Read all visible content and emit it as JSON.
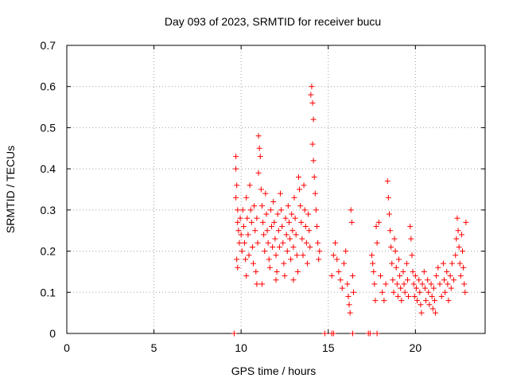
{
  "chart_data": {
    "type": "scatter",
    "title": "Day 093 of 2023, SRMTID for receiver bucu",
    "xlabel": "GPS time / hours",
    "ylabel": "SRMTID / TECUs",
    "xlim": [
      0,
      24
    ],
    "ylim": [
      0,
      0.7
    ],
    "xticks": [
      0,
      5,
      10,
      15,
      20
    ],
    "yticks": [
      0,
      0.1,
      0.2,
      0.3,
      0.4,
      0.5,
      0.6,
      0.7
    ],
    "xtick_labels": [
      "0",
      "5",
      "10",
      "15",
      "20"
    ],
    "ytick_labels": [
      "0",
      "0.1",
      "0.2",
      "0.3",
      "0.4",
      "0.5",
      "0.6",
      "0.7"
    ],
    "grid": true,
    "marker": "+",
    "color": "#ff0000",
    "series": [
      {
        "name": "SRMTID",
        "points": [
          [
            9.7,
            0.43
          ],
          [
            9.7,
            0.4
          ],
          [
            9.75,
            0.36
          ],
          [
            9.7,
            0.33
          ],
          [
            9.8,
            0.3
          ],
          [
            9.8,
            0.27
          ],
          [
            9.85,
            0.25
          ],
          [
            9.9,
            0.22
          ],
          [
            9.75,
            0.18
          ],
          [
            9.8,
            0.16
          ],
          [
            9.95,
            0.28
          ],
          [
            10.0,
            0.24
          ],
          [
            10.05,
            0.2
          ],
          [
            10.1,
            0.3
          ],
          [
            10.15,
            0.26
          ],
          [
            10.2,
            0.22
          ],
          [
            10.25,
            0.18
          ],
          [
            10.3,
            0.33
          ],
          [
            10.35,
            0.28
          ],
          [
            10.4,
            0.24
          ],
          [
            10.45,
            0.19
          ],
          [
            10.5,
            0.36
          ],
          [
            10.55,
            0.3
          ],
          [
            10.6,
            0.27
          ],
          [
            10.65,
            0.21
          ],
          [
            10.7,
            0.17
          ],
          [
            10.75,
            0.31
          ],
          [
            10.8,
            0.25
          ],
          [
            10.85,
            0.15
          ],
          [
            10.9,
            0.28
          ],
          [
            10.9,
            0.12
          ],
          [
            10.95,
            0.22
          ],
          [
            11.0,
            0.48
          ],
          [
            11.05,
            0.45
          ],
          [
            11.1,
            0.43
          ],
          [
            11.0,
            0.39
          ],
          [
            11.15,
            0.35
          ],
          [
            11.2,
            0.31
          ],
          [
            11.25,
            0.27
          ],
          [
            11.3,
            0.24
          ],
          [
            11.35,
            0.2
          ],
          [
            11.4,
            0.34
          ],
          [
            11.45,
            0.29
          ],
          [
            11.5,
            0.25
          ],
          [
            11.55,
            0.22
          ],
          [
            11.6,
            0.18
          ],
          [
            11.65,
            0.16
          ],
          [
            11.7,
            0.3
          ],
          [
            11.75,
            0.26
          ],
          [
            11.8,
            0.21
          ],
          [
            11.85,
            0.32
          ],
          [
            11.9,
            0.27
          ],
          [
            11.95,
            0.23
          ],
          [
            12.0,
            0.19
          ],
          [
            12.05,
            0.15
          ],
          [
            12.1,
            0.29
          ],
          [
            12.15,
            0.25
          ],
          [
            12.2,
            0.21
          ],
          [
            12.25,
            0.34
          ],
          [
            12.3,
            0.3
          ],
          [
            12.35,
            0.26
          ],
          [
            12.4,
            0.22
          ],
          [
            12.45,
            0.17
          ],
          [
            12.5,
            0.14
          ],
          [
            12.55,
            0.28
          ],
          [
            12.6,
            0.24
          ],
          [
            12.65,
            0.2
          ],
          [
            12.7,
            0.31
          ],
          [
            12.75,
            0.27
          ],
          [
            12.8,
            0.23
          ],
          [
            12.85,
            0.18
          ],
          [
            12.9,
            0.29
          ],
          [
            12.95,
            0.25
          ],
          [
            13.0,
            0.21
          ],
          [
            13.05,
            0.33
          ],
          [
            13.1,
            0.28
          ],
          [
            13.15,
            0.24
          ],
          [
            13.2,
            0.19
          ],
          [
            13.25,
            0.15
          ],
          [
            13.3,
            0.38
          ],
          [
            13.35,
            0.35
          ],
          [
            13.4,
            0.31
          ],
          [
            13.45,
            0.27
          ],
          [
            13.5,
            0.23
          ],
          [
            13.55,
            0.19
          ],
          [
            13.6,
            0.36
          ],
          [
            13.65,
            0.3
          ],
          [
            13.7,
            0.26
          ],
          [
            13.75,
            0.22
          ],
          [
            13.8,
            0.17
          ],
          [
            13.85,
            0.29
          ],
          [
            13.9,
            0.25
          ],
          [
            13.95,
            0.21
          ],
          [
            14.0,
            0.58
          ],
          [
            14.05,
            0.6
          ],
          [
            14.1,
            0.56
          ],
          [
            14.15,
            0.52
          ],
          [
            14.1,
            0.46
          ],
          [
            14.15,
            0.42
          ],
          [
            14.2,
            0.38
          ],
          [
            14.25,
            0.34
          ],
          [
            14.3,
            0.3
          ],
          [
            14.35,
            0.26
          ],
          [
            14.4,
            0.22
          ],
          [
            14.45,
            0.18
          ],
          [
            14.5,
            0.2
          ],
          [
            10.3,
            0.14
          ],
          [
            11.2,
            0.12
          ],
          [
            12.0,
            0.13
          ],
          [
            13.0,
            0.13
          ],
          [
            15.2,
            0.14
          ],
          [
            15.3,
            0.19
          ],
          [
            15.4,
            0.22
          ],
          [
            15.5,
            0.18
          ],
          [
            15.6,
            0.15
          ],
          [
            15.7,
            0.13
          ],
          [
            15.8,
            0.11
          ],
          [
            15.9,
            0.17
          ],
          [
            16.0,
            0.2
          ],
          [
            16.1,
            0.12
          ],
          [
            16.15,
            0.09
          ],
          [
            16.2,
            0.07
          ],
          [
            16.25,
            0.05
          ],
          [
            16.3,
            0.3
          ],
          [
            16.35,
            0.27
          ],
          [
            16.4,
            0.14
          ],
          [
            16.45,
            0.1
          ],
          [
            17.5,
            0.19
          ],
          [
            17.55,
            0.17
          ],
          [
            17.6,
            0.15
          ],
          [
            17.65,
            0.12
          ],
          [
            17.7,
            0.08
          ],
          [
            17.75,
            0.26
          ],
          [
            17.8,
            0.22
          ],
          [
            17.9,
            0.27
          ],
          [
            18.0,
            0.14
          ],
          [
            18.1,
            0.1
          ],
          [
            18.2,
            0.08
          ],
          [
            18.3,
            0.12
          ],
          [
            18.4,
            0.37
          ],
          [
            18.45,
            0.33
          ],
          [
            18.5,
            0.29
          ],
          [
            18.55,
            0.25
          ],
          [
            18.6,
            0.21
          ],
          [
            18.65,
            0.17
          ],
          [
            18.7,
            0.13
          ],
          [
            18.75,
            0.1
          ],
          [
            18.8,
            0.23
          ],
          [
            18.85,
            0.2
          ],
          [
            18.9,
            0.16
          ],
          [
            18.95,
            0.12
          ],
          [
            19.0,
            0.09
          ],
          [
            19.05,
            0.18
          ],
          [
            19.1,
            0.14
          ],
          [
            19.15,
            0.11
          ],
          [
            19.2,
            0.08
          ],
          [
            19.3,
            0.15
          ],
          [
            19.35,
            0.12
          ],
          [
            19.4,
            0.1
          ],
          [
            19.5,
            0.17
          ],
          [
            19.55,
            0.13
          ],
          [
            19.6,
            0.09
          ],
          [
            19.7,
            0.26
          ],
          [
            19.75,
            0.23
          ],
          [
            19.8,
            0.19
          ],
          [
            19.85,
            0.15
          ],
          [
            19.9,
            0.12
          ],
          [
            19.95,
            0.09
          ],
          [
            20.0,
            0.14
          ],
          [
            20.05,
            0.11
          ],
          [
            20.1,
            0.08
          ],
          [
            20.2,
            0.13
          ],
          [
            20.25,
            0.1
          ],
          [
            20.3,
            0.07
          ],
          [
            20.35,
            0.05
          ],
          [
            20.4,
            0.12
          ],
          [
            20.5,
            0.15
          ],
          [
            20.55,
            0.11
          ],
          [
            20.6,
            0.08
          ],
          [
            20.7,
            0.13
          ],
          [
            20.75,
            0.1
          ],
          [
            20.8,
            0.07
          ],
          [
            20.9,
            0.12
          ],
          [
            20.95,
            0.09
          ],
          [
            21.0,
            0.06
          ],
          [
            21.05,
            0.11
          ],
          [
            21.1,
            0.08
          ],
          [
            21.15,
            0.05
          ],
          [
            21.2,
            0.14
          ],
          [
            21.3,
            0.16
          ],
          [
            21.4,
            0.12
          ],
          [
            21.5,
            0.09
          ],
          [
            21.6,
            0.17
          ],
          [
            21.65,
            0.13
          ],
          [
            21.7,
            0.1
          ],
          [
            21.8,
            0.15
          ],
          [
            21.85,
            0.12
          ],
          [
            21.9,
            0.08
          ],
          [
            22.0,
            0.14
          ],
          [
            22.05,
            0.11
          ],
          [
            22.1,
            0.17
          ],
          [
            22.2,
            0.13
          ],
          [
            22.3,
            0.19
          ],
          [
            22.35,
            0.23
          ],
          [
            22.4,
            0.28
          ],
          [
            22.45,
            0.25
          ],
          [
            22.5,
            0.21
          ],
          [
            22.55,
            0.17
          ],
          [
            22.6,
            0.14
          ],
          [
            22.65,
            0.24
          ],
          [
            22.7,
            0.2
          ],
          [
            22.75,
            0.16
          ],
          [
            22.8,
            0.12
          ],
          [
            22.85,
            0.1
          ],
          [
            22.9,
            0.27
          ],
          [
            9.6,
            0.0
          ],
          [
            15.2,
            0.0
          ],
          [
            15.3,
            0.0
          ],
          [
            14.8,
            0.0
          ],
          [
            16.4,
            0.0
          ],
          [
            17.3,
            0.0
          ],
          [
            17.4,
            0.0
          ],
          [
            17.8,
            0.0
          ]
        ]
      }
    ]
  }
}
